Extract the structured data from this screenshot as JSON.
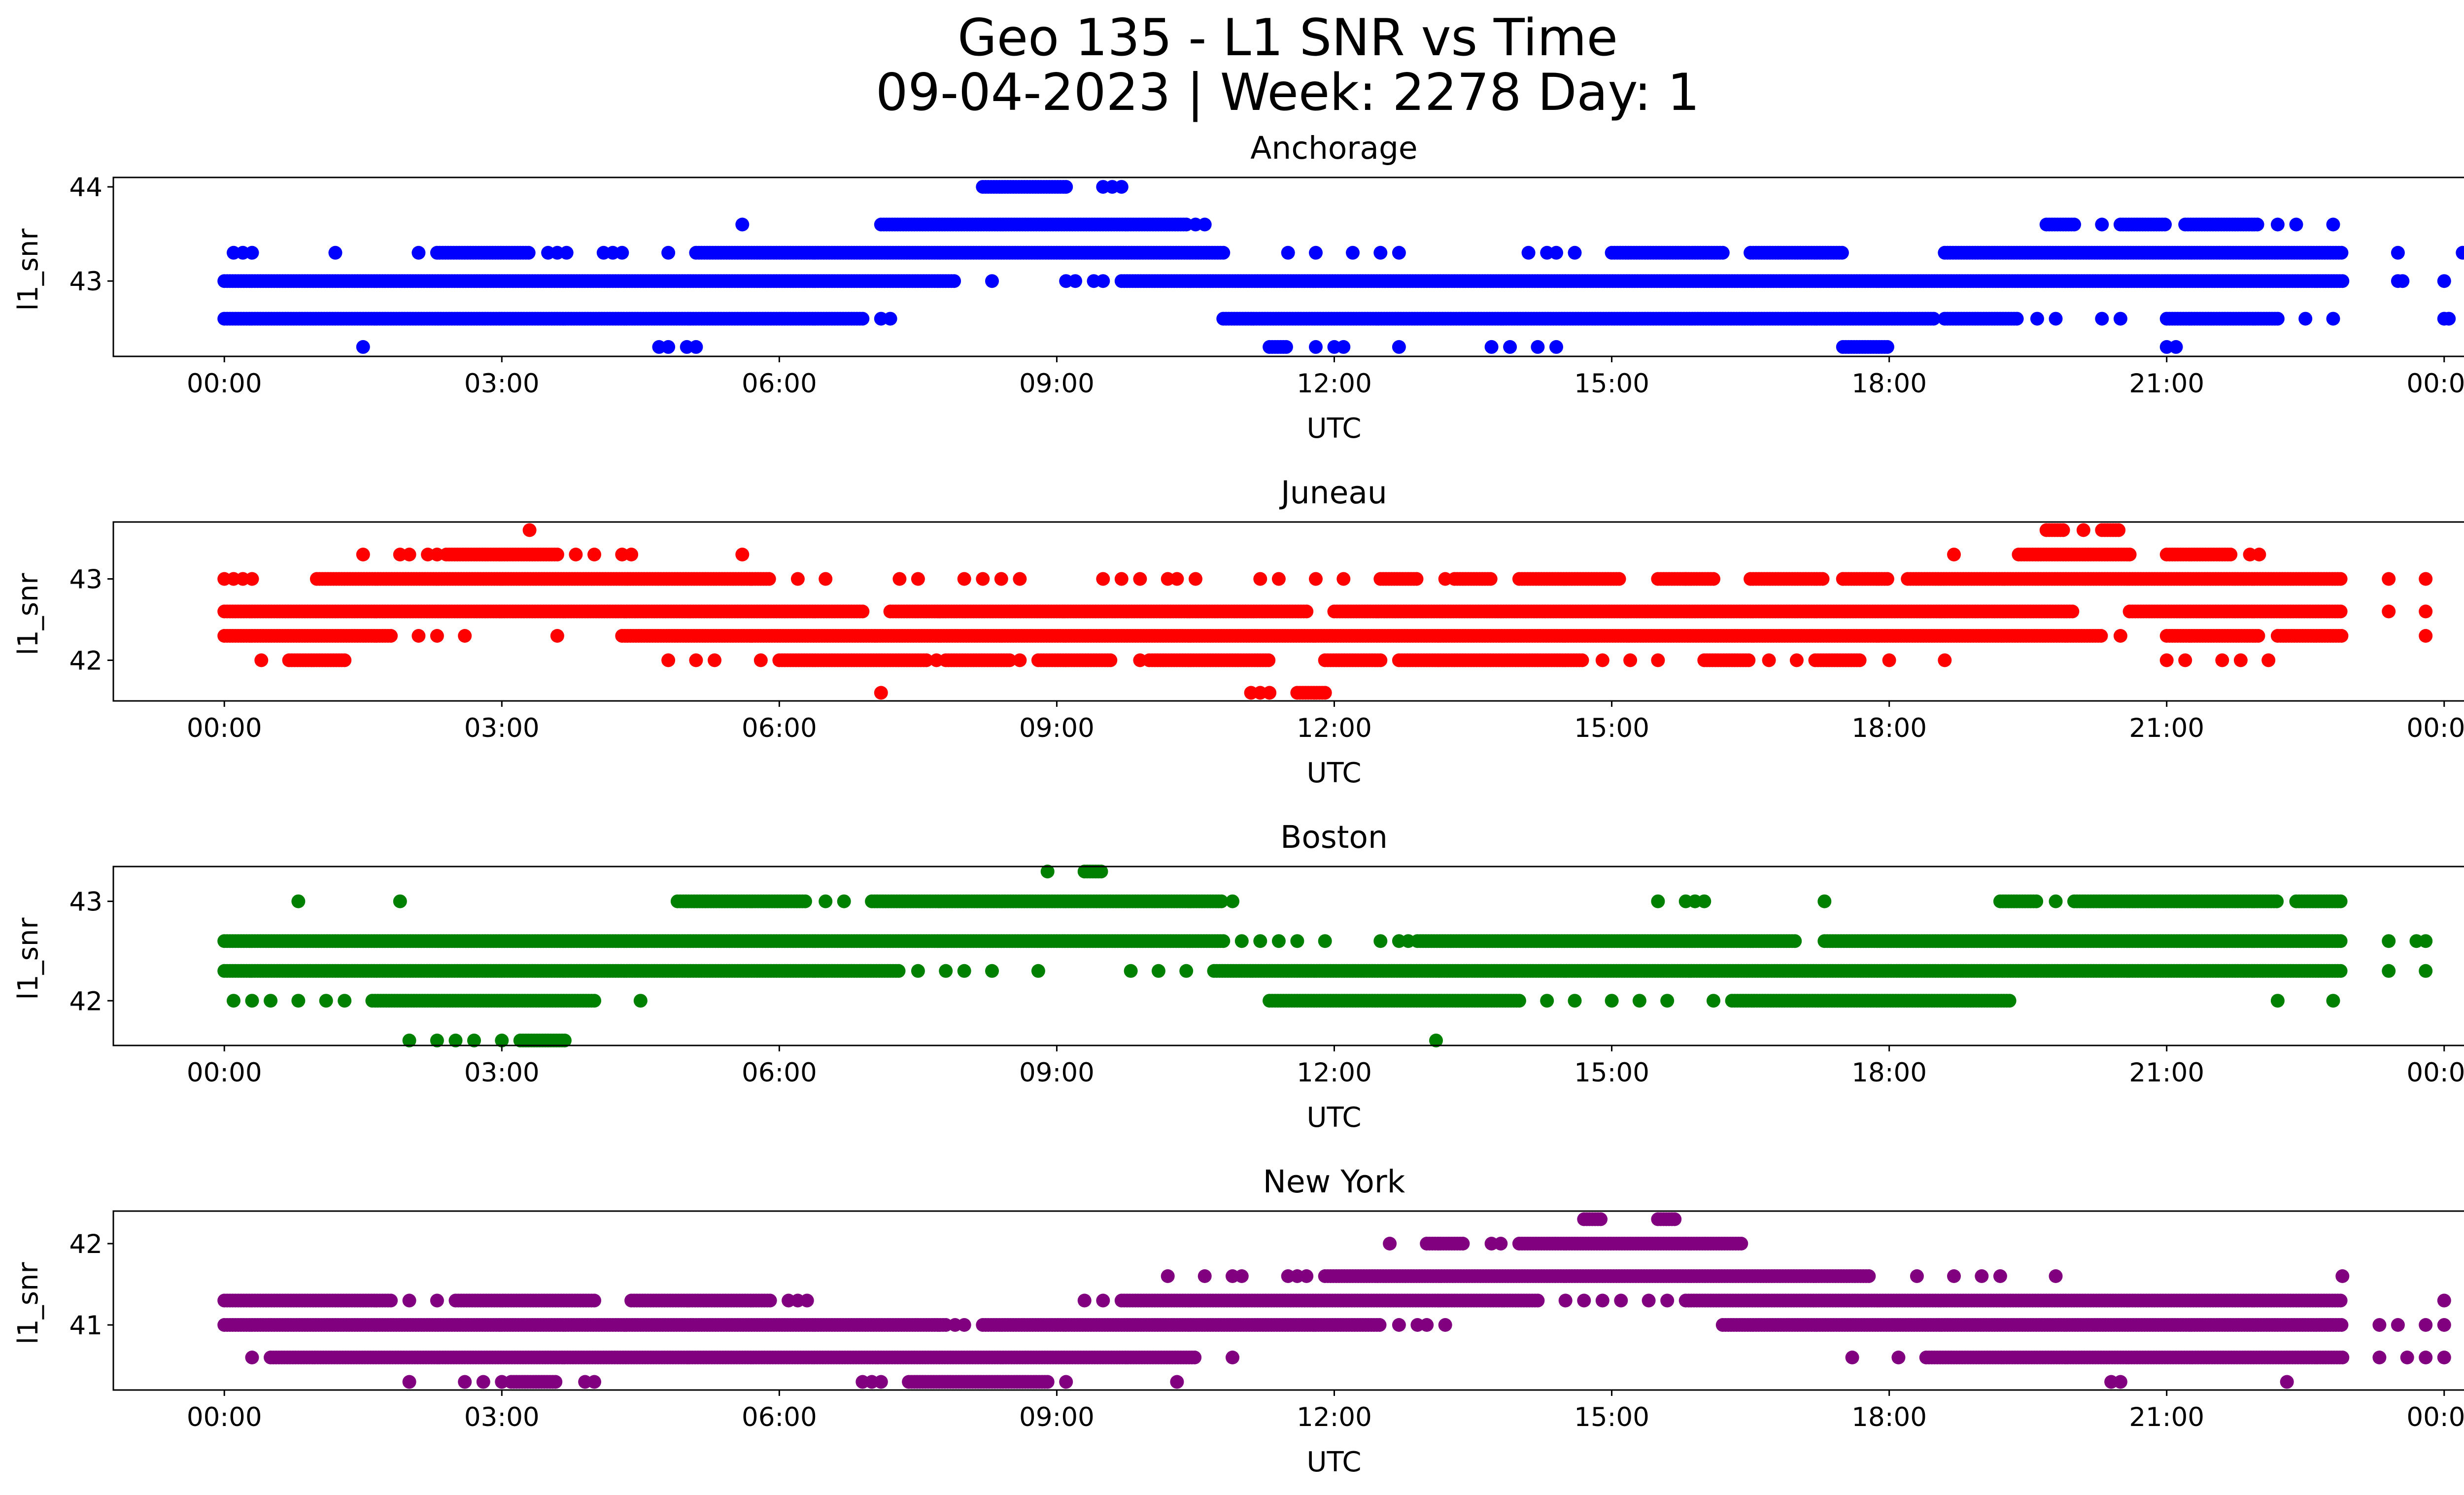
{
  "figure": {
    "title_line1": "Geo 135 - L1 SNR vs Time",
    "title_line2": "09-04-2023 | Week: 2278 Day: 1"
  },
  "chart_data": [
    {
      "type": "scatter",
      "title": "Anchorage",
      "xlabel": "UTC",
      "ylabel": "l1_snr",
      "color": "#0000ff",
      "xlim": [
        "-01:12",
        "25:12"
      ],
      "ylim": [
        42.2,
        44.1
      ],
      "x_ticks": [
        "00:00",
        "03:00",
        "06:00",
        "09:00",
        "12:00",
        "15:00",
        "18:00",
        "21:00",
        "00:00"
      ],
      "y_ticks": [
        43,
        44
      ],
      "series": [
        {
          "y": 44.0,
          "dense": [
            [
              8.2,
              9.1
            ]
          ],
          "sparse": [
            9.5,
            9.6,
            9.7
          ]
        },
        {
          "y": 43.6,
          "dense": [
            [
              7.1,
              10.4
            ],
            [
              19.7,
              20.0
            ],
            [
              20.5,
              21.0
            ],
            [
              21.2,
              22.0
            ]
          ],
          "sparse": [
            5.6,
            10.5,
            10.6,
            20.3,
            22.2,
            22.4,
            22.8
          ]
        },
        {
          "y": 43.3,
          "dense": [
            [
              2.3,
              3.3
            ],
            [
              5.1,
              10.8
            ],
            [
              15.0,
              16.2
            ],
            [
              16.5,
              17.5
            ],
            [
              18.6,
              22.9
            ]
          ],
          "sparse": [
            0.1,
            0.2,
            0.3,
            1.2,
            2.1,
            3.5,
            3.6,
            3.7,
            4.1,
            4.2,
            4.3,
            4.8,
            11.5,
            11.8,
            12.2,
            12.5,
            12.7,
            14.1,
            14.3,
            14.4,
            14.6,
            24.2,
            24.4,
            23.5
          ]
        },
        {
          "y": 43.0,
          "dense": [
            [
              0.0,
              7.9
            ],
            [
              9.7,
              22.9
            ]
          ],
          "sparse": [
            8.3,
            9.1,
            9.2,
            9.4,
            9.5,
            23.5,
            23.55,
            24.0
          ]
        },
        {
          "y": 42.6,
          "dense": [
            [
              0.0,
              6.9
            ],
            [
              10.8,
              18.5
            ],
            [
              18.6,
              19.4
            ],
            [
              21.0,
              22.2
            ]
          ],
          "sparse": [
            7.1,
            7.2,
            19.6,
            19.8,
            20.3,
            20.5,
            22.5,
            22.8,
            24.0,
            24.05
          ]
        },
        {
          "y": 42.3,
          "dense": [
            [
              11.3,
              11.5
            ],
            [
              17.5,
              18.0
            ]
          ],
          "sparse": [
            1.5,
            4.7,
            4.8,
            5.0,
            5.1,
            11.8,
            12.0,
            12.1,
            12.7,
            13.7,
            13.9,
            14.2,
            14.4,
            21.0,
            21.1
          ]
        }
      ]
    },
    {
      "type": "scatter",
      "title": "Juneau",
      "xlabel": "UTC",
      "ylabel": "l1_snr",
      "color": "#ff0000",
      "xlim": [
        "-01:12",
        "25:12"
      ],
      "ylim": [
        41.5,
        43.7
      ],
      "x_ticks": [
        "00:00",
        "03:00",
        "06:00",
        "09:00",
        "12:00",
        "15:00",
        "18:00",
        "21:00",
        "00:00"
      ],
      "y_ticks": [
        42,
        43
      ],
      "series": [
        {
          "y": 43.6,
          "dense": [
            [
              19.7,
              19.9
            ],
            [
              20.3,
              20.5
            ]
          ],
          "sparse": [
            3.3,
            20.1
          ]
        },
        {
          "y": 43.3,
          "dense": [
            [
              2.4,
              3.6
            ],
            [
              19.4,
              20.6
            ],
            [
              21.0,
              21.7
            ]
          ],
          "sparse": [
            1.5,
            1.9,
            2.0,
            2.2,
            2.3,
            3.8,
            4.0,
            4.3,
            4.4,
            5.6,
            18.7,
            21.9,
            22.0
          ]
        },
        {
          "y": 43.0,
          "dense": [
            [
              1.0,
              5.9
            ],
            [
              12.5,
              12.9
            ],
            [
              13.3,
              13.7
            ],
            [
              14.0,
              15.1
            ],
            [
              15.5,
              16.1
            ],
            [
              16.5,
              17.3
            ],
            [
              17.5,
              18.0
            ],
            [
              18.2,
              22.9
            ]
          ],
          "sparse": [
            0.0,
            0.1,
            0.2,
            0.3,
            6.2,
            6.5,
            7.3,
            7.5,
            8.0,
            8.2,
            8.4,
            8.6,
            9.5,
            9.7,
            9.9,
            10.2,
            10.3,
            10.5,
            11.2,
            11.4,
            11.8,
            12.1,
            13.2,
            15.8,
            17.5,
            23.4,
            23.8
          ]
        },
        {
          "y": 42.6,
          "dense": [
            [
              0.0,
              6.9
            ],
            [
              7.2,
              11.7
            ],
            [
              12.0,
              20.0
            ],
            [
              20.6,
              22.9
            ]
          ],
          "sparse": [
            23.4,
            23.8
          ]
        },
        {
          "y": 42.3,
          "dense": [
            [
              0.0,
              1.8
            ],
            [
              4.3,
              20.3
            ],
            [
              21.0,
              22.0
            ],
            [
              22.2,
              22.9
            ]
          ],
          "sparse": [
            2.1,
            2.3,
            2.6,
            3.6,
            20.5,
            23.8
          ]
        },
        {
          "y": 42.0,
          "dense": [
            [
              0.7,
              1.3
            ],
            [
              6.0,
              7.6
            ],
            [
              7.8,
              8.5
            ],
            [
              8.8,
              9.6
            ],
            [
              10.0,
              11.3
            ],
            [
              11.9,
              12.5
            ],
            [
              12.7,
              14.7
            ],
            [
              16.0,
              16.5
            ],
            [
              17.2,
              17.7
            ]
          ],
          "sparse": [
            0.4,
            4.8,
            5.1,
            5.3,
            5.8,
            7.7,
            8.6,
            9.9,
            14.9,
            15.2,
            15.5,
            16.7,
            17.0,
            18.0,
            18.6,
            21.0,
            21.2,
            21.6,
            21.8,
            22.1
          ]
        },
        {
          "y": 41.6,
          "dense": [
            [
              11.6,
              11.9
            ]
          ],
          "sparse": [
            7.1,
            11.1,
            11.2,
            11.3
          ]
        }
      ]
    },
    {
      "type": "scatter",
      "title": "Boston",
      "xlabel": "UTC",
      "ylabel": "l1_snr",
      "color": "#008000",
      "xlim": [
        "-01:12",
        "25:12"
      ],
      "ylim": [
        41.55,
        43.35
      ],
      "x_ticks": [
        "00:00",
        "03:00",
        "06:00",
        "09:00",
        "12:00",
        "15:00",
        "18:00",
        "21:00",
        "00:00"
      ],
      "y_ticks": [
        42,
        43
      ],
      "series": [
        {
          "y": 43.3,
          "dense": [
            [
              9.3,
              9.5
            ]
          ],
          "sparse": [
            8.9
          ]
        },
        {
          "y": 43.0,
          "dense": [
            [
              4.9,
              6.3
            ],
            [
              7.0,
              10.8
            ],
            [
              19.2,
              19.6
            ],
            [
              20.0,
              22.2
            ],
            [
              22.4,
              22.9
            ]
          ],
          "sparse": [
            0.8,
            1.9,
            6.5,
            6.7,
            10.9,
            15.5,
            15.8,
            15.9,
            16.0,
            17.3,
            19.8
          ]
        },
        {
          "y": 42.6,
          "dense": [
            [
              0.0,
              10.8
            ],
            [
              12.9,
              17.0
            ],
            [
              17.3,
              22.9
            ]
          ],
          "sparse": [
            11.0,
            11.2,
            11.4,
            11.6,
            11.9,
            12.5,
            12.7,
            12.8,
            23.4,
            23.7,
            23.8
          ]
        },
        {
          "y": 42.3,
          "dense": [
            [
              0.0,
              7.3
            ],
            [
              10.7,
              22.9
            ]
          ],
          "sparse": [
            7.5,
            7.8,
            8.0,
            8.3,
            8.8,
            9.8,
            10.1,
            10.4,
            23.4,
            23.8
          ]
        },
        {
          "y": 42.0,
          "dense": [
            [
              1.6,
              4.0
            ],
            [
              11.3,
              14.0
            ],
            [
              16.3,
              19.3
            ]
          ],
          "sparse": [
            0.1,
            0.3,
            0.5,
            0.8,
            1.1,
            1.3,
            4.5,
            14.3,
            14.6,
            15.0,
            15.3,
            15.6,
            16.1,
            22.2,
            22.8
          ]
        },
        {
          "y": 41.6,
          "dense": [
            [
              3.2,
              3.7
            ]
          ],
          "sparse": [
            2.0,
            2.3,
            2.5,
            2.7,
            3.0,
            13.1
          ]
        }
      ]
    },
    {
      "type": "scatter",
      "title": "New York",
      "xlabel": "UTC",
      "ylabel": "l1_snr",
      "color": "#800080",
      "xlim": [
        "-01:12",
        "25:12"
      ],
      "ylim": [
        40.2,
        42.4
      ],
      "x_ticks": [
        "00:00",
        "03:00",
        "06:00",
        "09:00",
        "12:00",
        "15:00",
        "18:00",
        "21:00",
        "00:00"
      ],
      "y_ticks": [
        41,
        42
      ],
      "series": [
        {
          "y": 42.3,
          "dense": [
            [
              14.7,
              14.9
            ],
            [
              15.5,
              15.7
            ]
          ],
          "sparse": []
        },
        {
          "y": 42.0,
          "dense": [
            [
              13.0,
              13.4
            ],
            [
              14.0,
              16.4
            ]
          ],
          "sparse": [
            12.6,
            13.7,
            13.8
          ]
        },
        {
          "y": 41.6,
          "dense": [
            [
              11.9,
              17.8
            ]
          ],
          "sparse": [
            10.2,
            10.6,
            10.9,
            11.0,
            11.5,
            11.6,
            11.7,
            18.3,
            18.7,
            19.0,
            19.2,
            19.8,
            22.9
          ]
        },
        {
          "y": 41.3,
          "dense": [
            [
              0.0,
              1.8
            ],
            [
              2.5,
              4.0
            ],
            [
              4.4,
              5.9
            ],
            [
              9.7,
              14.2
            ],
            [
              15.8,
              22.9
            ]
          ],
          "sparse": [
            2.0,
            2.3,
            6.1,
            6.2,
            6.3,
            9.3,
            9.5,
            14.5,
            14.7,
            14.9,
            15.1,
            15.4,
            15.6,
            24.0
          ]
        },
        {
          "y": 41.0,
          "dense": [
            [
              0.0,
              7.8
            ],
            [
              8.2,
              12.5
            ],
            [
              16.2,
              22.9
            ]
          ],
          "sparse": [
            7.9,
            8.0,
            12.7,
            12.9,
            13.0,
            13.2,
            23.3,
            23.5,
            23.8,
            24.0
          ]
        },
        {
          "y": 40.6,
          "dense": [
            [
              0.5,
              10.5
            ],
            [
              18.4,
              22.9
            ]
          ],
          "sparse": [
            0.3,
            10.9,
            17.6,
            18.1,
            23.3,
            23.6,
            23.8,
            24.0
          ]
        },
        {
          "y": 40.3,
          "dense": [
            [
              7.4,
              8.9
            ],
            [
              3.1,
              3.6
            ]
          ],
          "sparse": [
            2.0,
            2.6,
            2.8,
            3.0,
            3.9,
            4.0,
            6.9,
            7.0,
            7.1,
            9.1,
            10.3,
            20.4,
            20.5,
            22.3
          ]
        }
      ]
    }
  ]
}
